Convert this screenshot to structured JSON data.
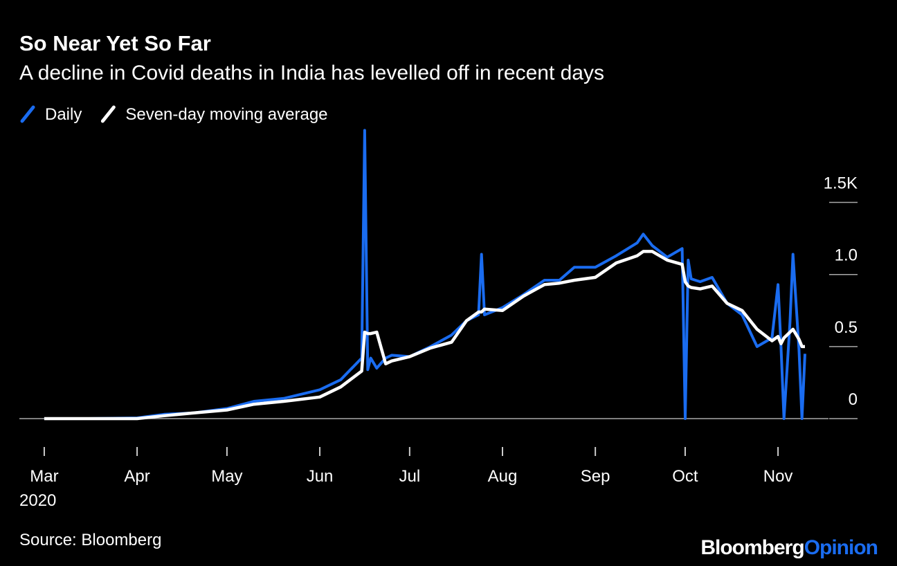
{
  "chart_data": {
    "type": "line",
    "title": "So Near Yet So Far",
    "subtitle": "A decline in Covid deaths in India has levelled off in recent days",
    "source": "Source: Bloomberg",
    "brand": [
      "Bloomberg",
      "Opinion"
    ],
    "x": [
      "2020-03-01",
      "2020-03-15",
      "2020-04-01",
      "2020-04-10",
      "2020-04-20",
      "2020-05-01",
      "2020-05-10",
      "2020-05-20",
      "2020-06-01",
      "2020-06-08",
      "2020-06-15",
      "2020-06-16",
      "2020-06-17",
      "2020-06-18",
      "2020-06-20",
      "2020-06-23",
      "2020-06-25",
      "2020-07-01",
      "2020-07-08",
      "2020-07-15",
      "2020-07-20",
      "2020-07-24",
      "2020-07-25",
      "2020-07-26",
      "2020-08-01",
      "2020-08-08",
      "2020-08-15",
      "2020-08-20",
      "2020-08-25",
      "2020-09-01",
      "2020-09-08",
      "2020-09-15",
      "2020-09-17",
      "2020-09-20",
      "2020-09-25",
      "2020-09-30",
      "2020-10-01",
      "2020-10-02",
      "2020-10-03",
      "2020-10-06",
      "2020-10-10",
      "2020-10-15",
      "2020-10-20",
      "2020-10-25",
      "2020-10-30",
      "2020-11-01",
      "2020-11-02",
      "2020-11-03",
      "2020-11-05",
      "2020-11-06",
      "2020-11-08",
      "2020-11-09",
      "2020-11-10"
    ],
    "series": [
      {
        "name": "Daily",
        "color": "#1a6cf0",
        "values": [
          0,
          0,
          0.005,
          0.03,
          0.04,
          0.07,
          0.12,
          0.14,
          0.2,
          0.27,
          0.42,
          2.0,
          0.34,
          0.42,
          0.35,
          0.42,
          0.44,
          0.43,
          0.5,
          0.58,
          0.68,
          0.72,
          1.14,
          0.72,
          0.77,
          0.86,
          0.96,
          0.96,
          1.05,
          1.05,
          1.13,
          1.22,
          1.28,
          1.2,
          1.12,
          1.18,
          0,
          1.1,
          0.97,
          0.95,
          0.98,
          0.8,
          0.72,
          0.5,
          0.56,
          0.93,
          0.5,
          0,
          0.67,
          1.14,
          0.48,
          0,
          0.45
        ]
      },
      {
        "name": "Seven-day moving average",
        "color": "#ffffff",
        "values": [
          0,
          0,
          0,
          0.02,
          0.04,
          0.06,
          0.1,
          0.12,
          0.15,
          0.22,
          0.33,
          0.6,
          0.59,
          0.59,
          0.6,
          0.38,
          0.4,
          0.43,
          0.49,
          0.53,
          0.68,
          0.74,
          0.74,
          0.76,
          0.75,
          0.85,
          0.93,
          0.94,
          0.96,
          0.98,
          1.08,
          1.13,
          1.16,
          1.16,
          1.1,
          1.07,
          0.95,
          0.92,
          0.91,
          0.9,
          0.92,
          0.8,
          0.75,
          0.62,
          0.54,
          0.57,
          0.52,
          0.56,
          0.6,
          0.62,
          0.55,
          0.5,
          0.5
        ]
      }
    ],
    "xlim": [
      "2020-02-21",
      "2020-11-16"
    ],
    "xticks": [
      {
        "value": "2020-03-01",
        "label": "Mar"
      },
      {
        "value": "2020-04-01",
        "label": "Apr"
      },
      {
        "value": "2020-05-01",
        "label": "May"
      },
      {
        "value": "2020-06-01",
        "label": "Jun"
      },
      {
        "value": "2020-07-01",
        "label": "Jul"
      },
      {
        "value": "2020-08-01",
        "label": "Aug"
      },
      {
        "value": "2020-09-01",
        "label": "Sep"
      },
      {
        "value": "2020-10-01",
        "label": "Oct"
      },
      {
        "value": "2020-11-01",
        "label": "Nov"
      }
    ],
    "xtick_year": "2020",
    "ylim": [
      0,
      2.05
    ],
    "yticks": [
      0,
      0.5,
      {
        "value": 1,
        "label": "1.0"
      },
      {
        "value": 1.5,
        "label": "1.5K"
      }
    ],
    "legend": "top-left"
  }
}
